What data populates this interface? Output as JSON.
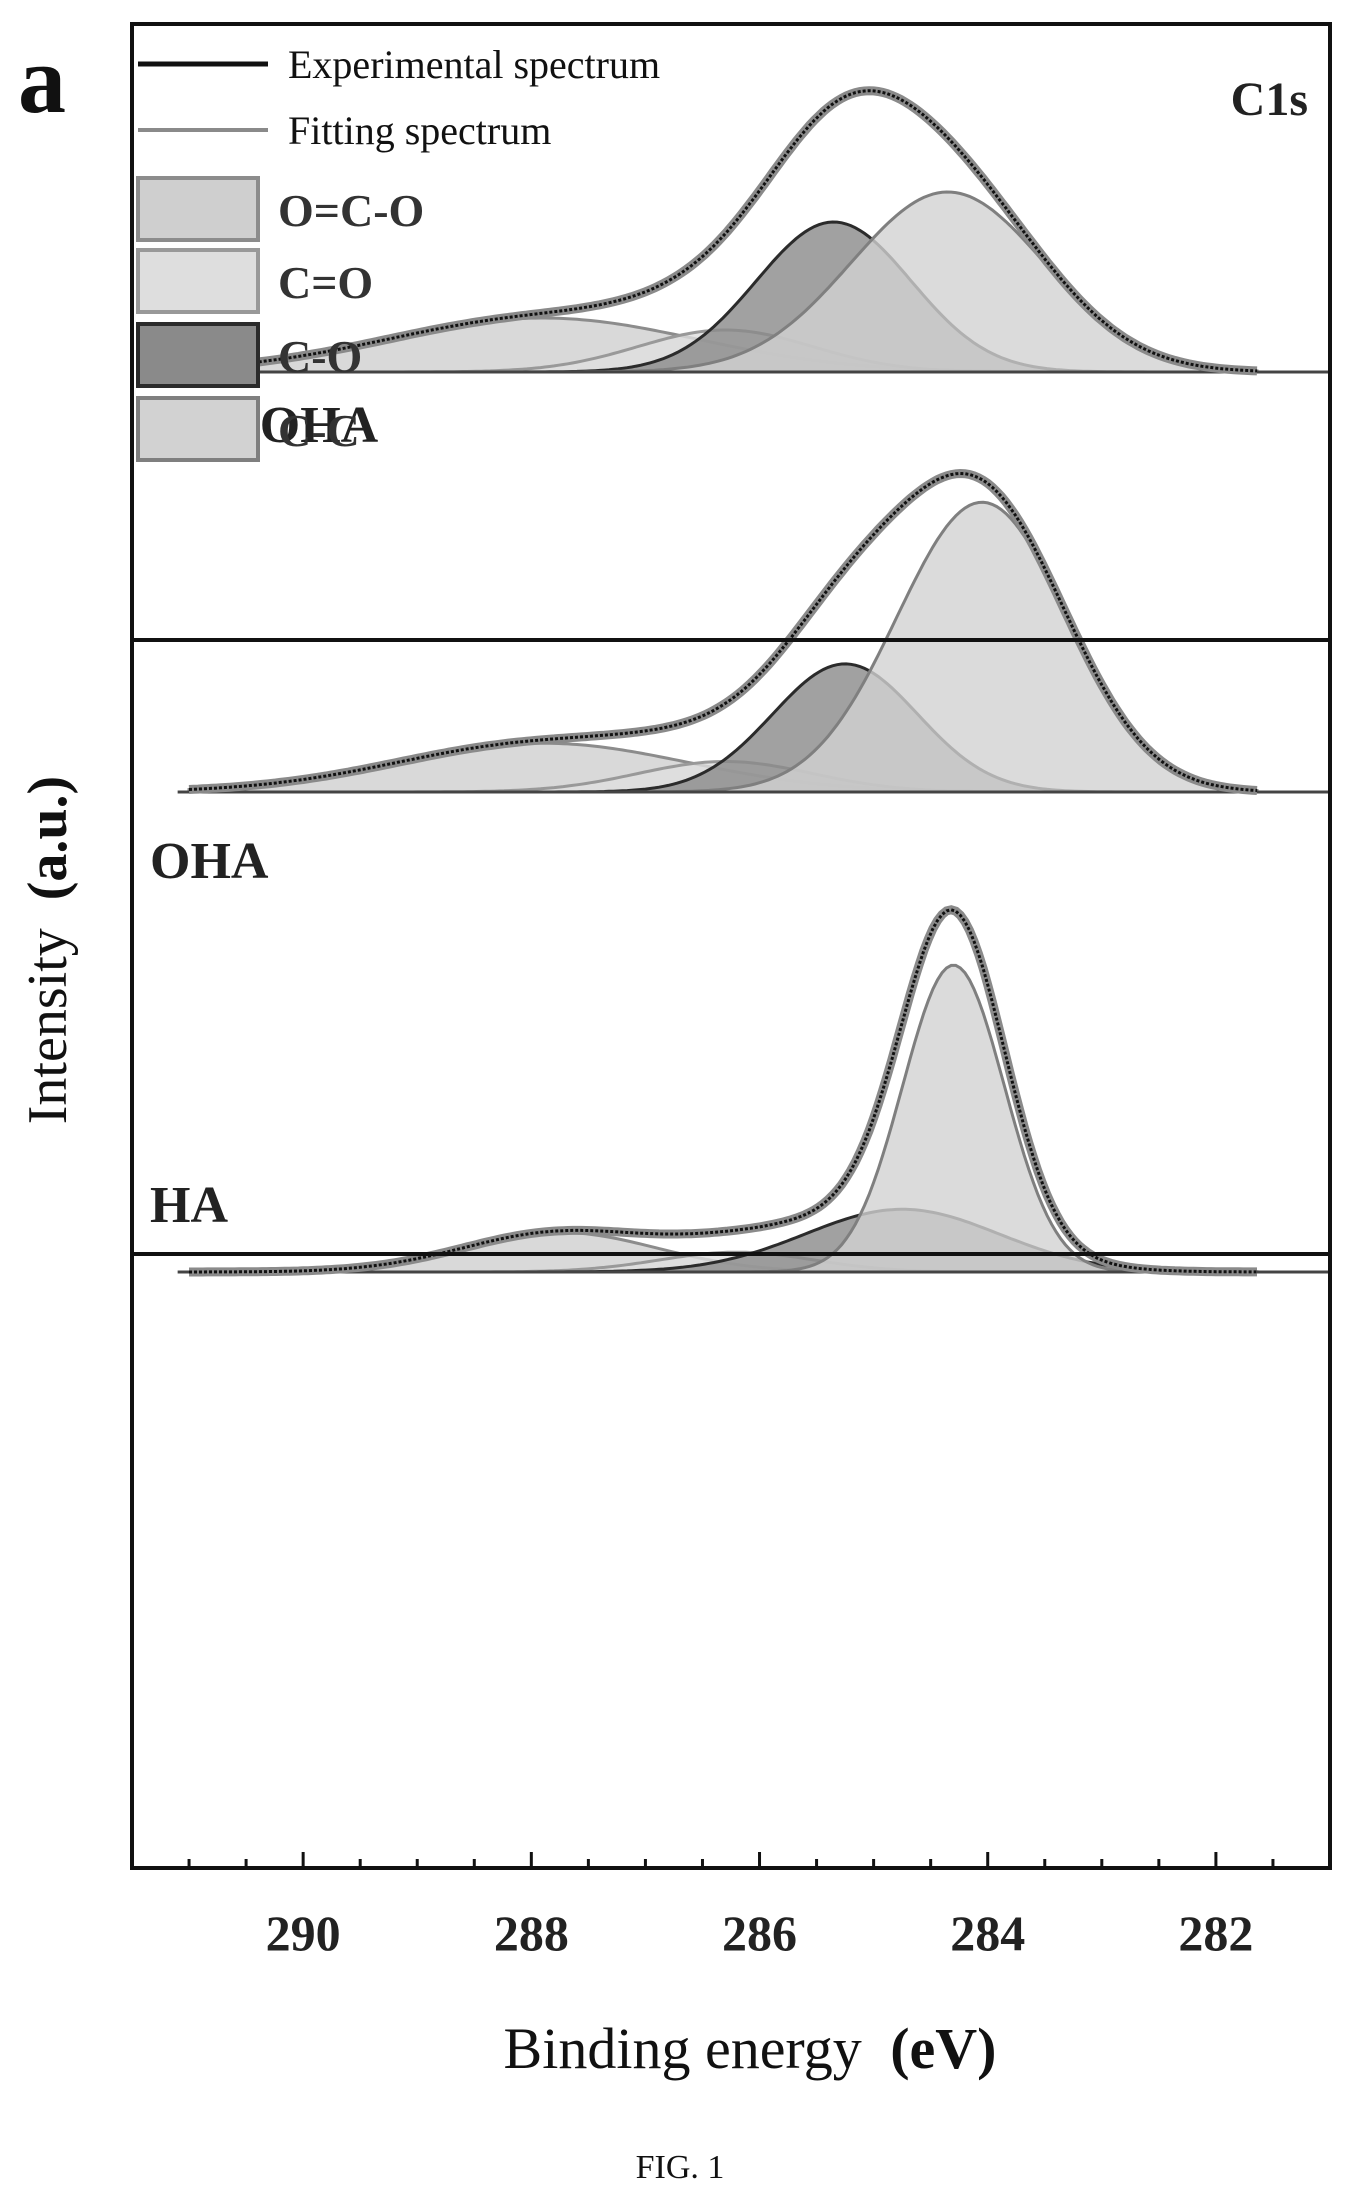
{
  "figure": {
    "panel_label": "a",
    "corner_label": "C1s",
    "caption": "FIG. 1"
  },
  "chart_data": {
    "type": "area",
    "xlabel": "Binding energy",
    "xlabel_unit": "(eV)",
    "ylabel": "Intensity",
    "ylabel_unit": "(a.u.)",
    "x_reversed": true,
    "xlim": [
      291.5,
      281.0
    ],
    "xticks": [
      290,
      288,
      286,
      284,
      282
    ],
    "y_ticks_shown": false,
    "grid": false,
    "legend": {
      "placement": "top-left",
      "lines": [
        {
          "name": "Experimental spectrum",
          "color": "#111111",
          "width": 5
        },
        {
          "name": "Fitting spectrum",
          "color": "#8a8a8a",
          "width": 4
        }
      ],
      "boxes": [
        {
          "name": "O=C-O",
          "fill": "#cfcfcf",
          "stroke": "#8c8c8c"
        },
        {
          "name": "C=O",
          "fill": "#dedede",
          "stroke": "#999999"
        },
        {
          "name": "C-O",
          "fill": "#8a8a8a",
          "stroke": "#2b2b2b"
        },
        {
          "name": "C-C",
          "fill": "#d2d2d2",
          "stroke": "#7f7f7f"
        }
      ]
    },
    "panels": [
      {
        "sample": "CNBOHA",
        "baseline": 0.0,
        "ymax": 1.0,
        "components": [
          {
            "name": "O=C-O",
            "center": 287.9,
            "height": 0.18,
            "fwhm": 3.2
          },
          {
            "name": "C=O",
            "center": 286.3,
            "height": 0.14,
            "fwhm": 1.8
          },
          {
            "name": "C-O",
            "center": 285.35,
            "height": 0.5,
            "fwhm": 1.6
          },
          {
            "name": "C-C",
            "center": 284.35,
            "height": 0.6,
            "fwhm": 2.0
          }
        ]
      },
      {
        "sample": "OHA",
        "baseline": 0.0,
        "ymax": 1.0,
        "components": [
          {
            "name": "O=C-O",
            "center": 287.9,
            "height": 0.16,
            "fwhm": 3.0
          },
          {
            "name": "C=O",
            "center": 286.3,
            "height": 0.1,
            "fwhm": 1.8
          },
          {
            "name": "C-O",
            "center": 285.25,
            "height": 0.42,
            "fwhm": 1.5
          },
          {
            "name": "C-C",
            "center": 284.05,
            "height": 0.95,
            "fwhm": 1.75
          }
        ]
      },
      {
        "sample": "HA",
        "baseline": 0.0,
        "ymax": 1.0,
        "components": [
          {
            "name": "O=C-O",
            "center": 287.75,
            "height": 0.12,
            "fwhm": 2.0
          },
          {
            "name": "C=O",
            "center": 286.2,
            "height": 0.06,
            "fwhm": 1.6
          },
          {
            "name": "C-O",
            "center": 284.75,
            "height": 0.19,
            "fwhm": 2.0
          },
          {
            "name": "C-C",
            "center": 284.3,
            "height": 0.93,
            "fwhm": 1.05
          }
        ]
      }
    ]
  }
}
